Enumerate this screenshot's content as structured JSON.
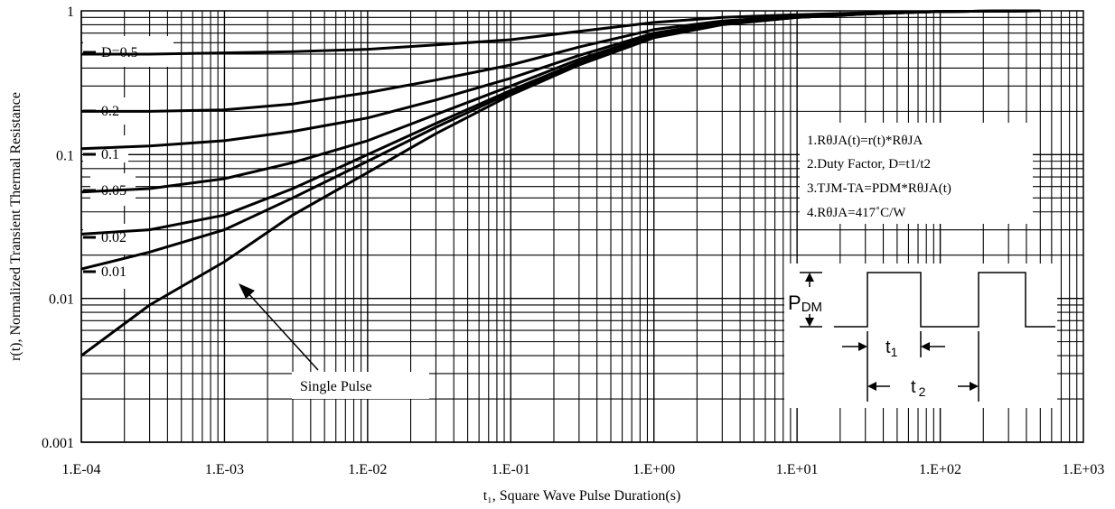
{
  "chart_data": {
    "type": "line",
    "xscale": "log",
    "yscale": "log",
    "xlim": [
      0.0001,
      1000
    ],
    "ylim": [
      0.001,
      1
    ],
    "grid": true,
    "xlabel": "t₁, Square Wave Pulse Duration(s)",
    "ylabel": "r(t), Normalized Transient Thermal Resistance",
    "x_tick_labels": [
      "1.E-04",
      "1.E-03",
      "1.E-02",
      "1.E-01",
      "1.E+00",
      "1.E+01",
      "1.E+02",
      "1.E+03"
    ],
    "y_tick_labels": [
      "0.001",
      "0.01",
      "0.1",
      "1"
    ],
    "series": [
      {
        "name": "D=0.5",
        "x": [
          0.0001,
          0.0003,
          0.001,
          0.003,
          0.01,
          0.03,
          0.1,
          0.3,
          1,
          3,
          10,
          30,
          100,
          500
        ],
        "y": [
          0.5,
          0.5,
          0.51,
          0.52,
          0.54,
          0.58,
          0.63,
          0.72,
          0.83,
          0.9,
          0.94,
          0.97,
          0.99,
          1.0
        ]
      },
      {
        "name": "0.2",
        "x": [
          0.0001,
          0.0003,
          0.001,
          0.003,
          0.01,
          0.03,
          0.1,
          0.3,
          1,
          3,
          10,
          30,
          100,
          500
        ],
        "y": [
          0.2,
          0.2,
          0.205,
          0.225,
          0.27,
          0.33,
          0.42,
          0.56,
          0.74,
          0.85,
          0.92,
          0.96,
          0.99,
          1.0
        ]
      },
      {
        "name": "0.1",
        "x": [
          0.0001,
          0.0003,
          0.001,
          0.003,
          0.01,
          0.03,
          0.1,
          0.3,
          1,
          3,
          10,
          30,
          100,
          500
        ],
        "y": [
          0.11,
          0.115,
          0.125,
          0.145,
          0.18,
          0.24,
          0.34,
          0.49,
          0.7,
          0.83,
          0.91,
          0.96,
          0.99,
          1.0
        ]
      },
      {
        "name": "0.05",
        "x": [
          0.0001,
          0.0003,
          0.001,
          0.003,
          0.01,
          0.03,
          0.1,
          0.3,
          1,
          3,
          10,
          30,
          100,
          500
        ],
        "y": [
          0.055,
          0.058,
          0.068,
          0.088,
          0.125,
          0.19,
          0.3,
          0.46,
          0.68,
          0.82,
          0.91,
          0.96,
          0.99,
          1.0
        ]
      },
      {
        "name": "0.02",
        "x": [
          0.0001,
          0.0003,
          0.001,
          0.003,
          0.01,
          0.03,
          0.1,
          0.3,
          1,
          3,
          10,
          30,
          100,
          500
        ],
        "y": [
          0.028,
          0.03,
          0.038,
          0.058,
          0.1,
          0.165,
          0.28,
          0.44,
          0.67,
          0.81,
          0.9,
          0.95,
          0.99,
          1.0
        ]
      },
      {
        "name": "0.01",
        "x": [
          0.0001,
          0.0003,
          0.001,
          0.003,
          0.01,
          0.03,
          0.1,
          0.3,
          1,
          3,
          10,
          30,
          100,
          500
        ],
        "y": [
          0.016,
          0.021,
          0.03,
          0.05,
          0.09,
          0.155,
          0.27,
          0.43,
          0.66,
          0.81,
          0.9,
          0.95,
          0.99,
          1.0
        ]
      },
      {
        "name": "Single Pulse",
        "x": [
          0.0001,
          0.0003,
          0.001,
          0.003,
          0.01,
          0.03,
          0.1,
          0.3,
          1,
          3,
          10,
          30,
          100,
          500
        ],
        "y": [
          0.004,
          0.009,
          0.018,
          0.038,
          0.075,
          0.14,
          0.26,
          0.42,
          0.65,
          0.8,
          0.9,
          0.95,
          0.99,
          1.0
        ]
      }
    ],
    "curve_labels": [
      "D=0.5",
      "0.2",
      "0.1",
      "0.05",
      "0.02",
      "0.01"
    ],
    "annotation": "Single Pulse",
    "notes": [
      "1.RθJA(t)=r(t)*RθJA",
      "2.Duty Factor, D=t1/t2",
      "3.TJM-TA=PDM*RθJA(t)",
      "4.RθJA=417˚C/W"
    ],
    "pulse_diagram": {
      "pdm_label_main": "P",
      "pdm_label_sub": "DM",
      "t1_label_main": "t",
      "t1_label_sub": "1",
      "t2_label_main": "t",
      "t2_label_sub": "2"
    }
  }
}
